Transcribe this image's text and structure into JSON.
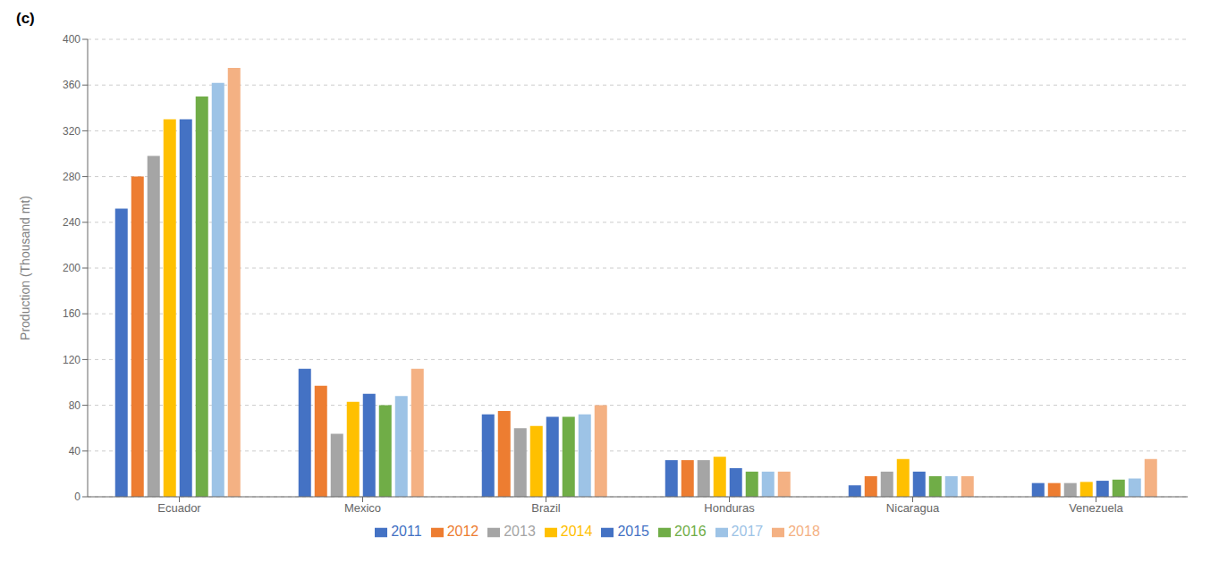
{
  "chart_data": {
    "type": "bar",
    "title": "(c)",
    "ylabel": "Production (Thousand mt)",
    "categories": [
      "Ecuador",
      "Mexico",
      "Brazil",
      "Honduras",
      "Nicaragua",
      "Venezuela"
    ],
    "series": [
      {
        "name": "2011",
        "color": "#4472C4",
        "values": [
          252,
          112,
          72,
          32,
          10,
          12
        ]
      },
      {
        "name": "2012",
        "color": "#ED7D31",
        "values": [
          280,
          97,
          75,
          32,
          18,
          12
        ]
      },
      {
        "name": "2013",
        "color": "#A5A5A5",
        "values": [
          298,
          55,
          60,
          32,
          22,
          12
        ]
      },
      {
        "name": "2014",
        "color": "#FFC000",
        "values": [
          330,
          83,
          62,
          35,
          33,
          13
        ]
      },
      {
        "name": "2015",
        "color": "#4472C4",
        "values": [
          330,
          90,
          70,
          25,
          22,
          14
        ]
      },
      {
        "name": "2016",
        "color": "#70AD47",
        "values": [
          350,
          80,
          70,
          22,
          18,
          15
        ]
      },
      {
        "name": "2017",
        "color": "#9DC3E6",
        "values": [
          362,
          88,
          72,
          22,
          18,
          16
        ]
      },
      {
        "name": "2018",
        "color": "#F4B183",
        "values": [
          375,
          112,
          80,
          22,
          18,
          33
        ]
      }
    ],
    "ylim": [
      0,
      400
    ],
    "yticks": [
      0,
      40,
      80,
      120,
      160,
      200,
      240,
      280,
      320,
      360,
      400
    ],
    "grid": true,
    "legend": "bottom"
  }
}
